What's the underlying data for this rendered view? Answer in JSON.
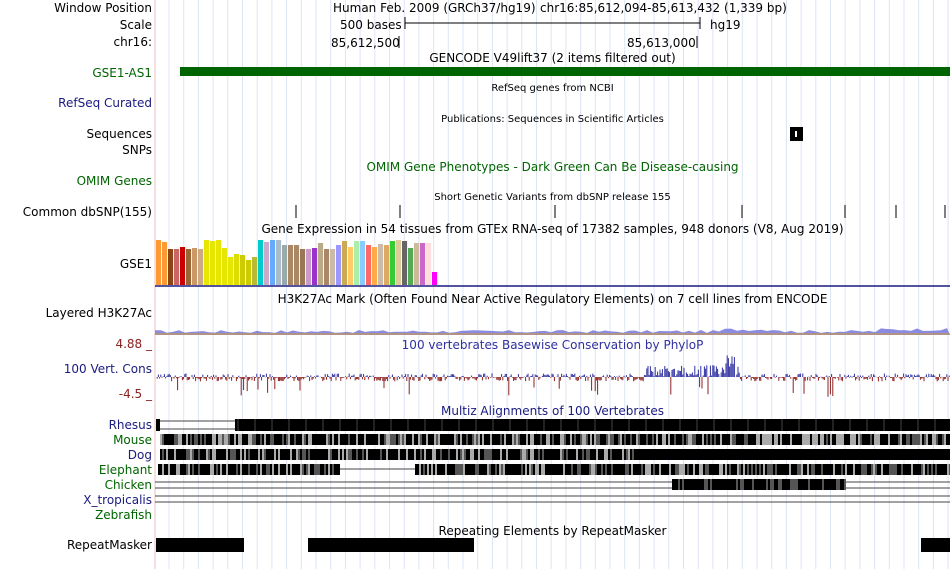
{
  "header": {
    "window_position_label": "Window Position",
    "scale_label": "Scale",
    "chrom_label": "chr16:",
    "assembly_title": "Human Feb. 2009 (GRCh37/hg19)",
    "position": "chr16:85,612,094-85,613,432 (1,339 bp)",
    "scale_text": "500 bases",
    "db": "hg19",
    "coord_left": "85,612,500",
    "coord_right": "85,613,000"
  },
  "tracks": {
    "gencode": {
      "title": "GENCODE V49lift37 (2 items filtered out)",
      "item_label": "GSE1-AS1",
      "color": "#006400"
    },
    "refseq": {
      "label": "RefSeq Curated",
      "title": "RefSeq genes from NCBI",
      "color": "#1a1a80"
    },
    "publications": {
      "label_top": "Sequences",
      "label_bottom": "SNPs",
      "title": "Publications: Sequences in Scientific Articles"
    },
    "omim": {
      "label": "OMIM Genes",
      "title": "OMIM Gene Phenotypes - Dark Green Can Be Disease-causing",
      "color": "#006400"
    },
    "dbsnp": {
      "label": "Common dbSNP(155)",
      "title": "Short Genetic Variants from dbSNP release 155"
    },
    "gtex": {
      "label": "GSE1",
      "title": "Gene Expression in 54 tissues from GTEx RNA-seq of 17382 samples, 948 donors (V8, Aug 2019)"
    },
    "h3k27ac": {
      "label": "Layered H3K27Ac",
      "title": "H3K27Ac Mark (Often Found Near Active Regulatory Elements) on 7 cell lines from ENCODE"
    },
    "phylop": {
      "label": "100 Vert. Cons",
      "title": "100 vertebrates Basewise Conservation by PhyloP",
      "max": "4.88 _",
      "min": "-4.5 _",
      "color": "#3030a0",
      "neg_color": "#8b2020"
    },
    "multiz": {
      "title": "Multiz Alignments of 100 Vertebrates",
      "species": [
        {
          "name": "Rhesus",
          "color": "#1a1a80"
        },
        {
          "name": "Mouse",
          "color": "#006400"
        },
        {
          "name": "Dog",
          "color": "#1a1a80"
        },
        {
          "name": "Elephant",
          "color": "#006400"
        },
        {
          "name": "Chicken",
          "color": "#006400"
        },
        {
          "name": "X_tropicalis",
          "color": "#1a1a80"
        },
        {
          "name": "Zebrafish",
          "color": "#006400"
        }
      ]
    },
    "repeatmasker": {
      "label": "RepeatMasker",
      "title": "Repeating Elements by RepeatMasker"
    }
  },
  "colors": {
    "gtex_bars": [
      "#ff9933",
      "#ff9933",
      "#8b4513",
      "#cc6666",
      "#cc0000",
      "#996633",
      "#cc9966",
      "#ccaa88",
      "#e6e600",
      "#e6e600",
      "#e6e600",
      "#e6e600",
      "#e6e600",
      "#dddd00",
      "#cccc00",
      "#cccc00",
      "#bbbb33",
      "#00cccc",
      "#ccaacc",
      "#66aaff",
      "#aabbcc",
      "#99aaaa",
      "#aa8866",
      "#aa8866",
      "#997755",
      "#cc99cc",
      "#9933cc",
      "#bbaa88",
      "#aa8866",
      "#ccbbaa",
      "#9999ff",
      "#ccaa55",
      "#ffcc66",
      "#aaeeaa",
      "#88ccff",
      "#ff6666",
      "#ffaa44",
      "#ccbbaa",
      "#ddaa66",
      "#33cc33",
      "#ddcc99",
      "#666666",
      "#55aa55",
      "#ccbb99",
      "#cc66cc",
      "#ffdddd",
      "#ff00ff"
    ]
  }
}
